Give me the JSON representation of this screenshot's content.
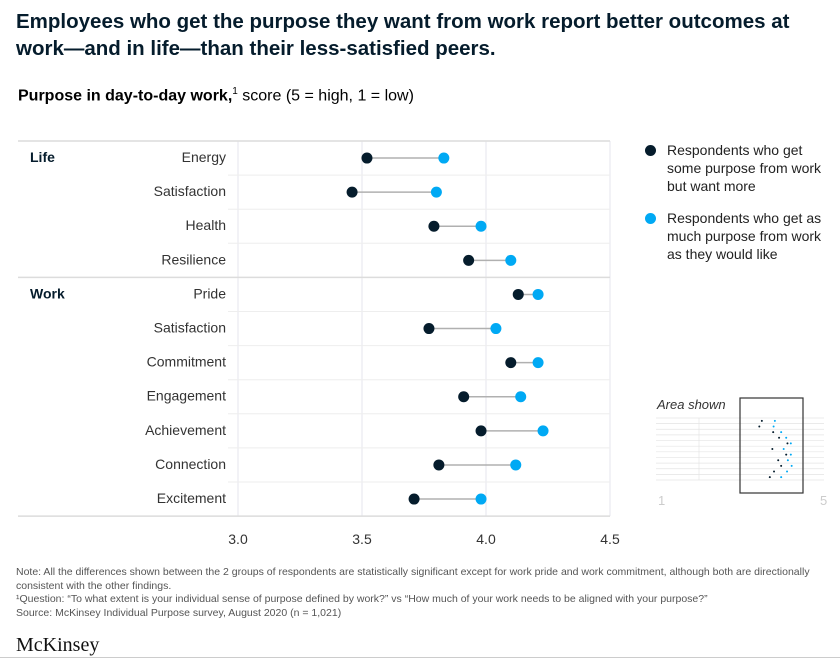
{
  "title": "Employees who get the purpose they want from work report better outcomes at work—and in life—than their less-satisfied peers.",
  "subtitle": {
    "bold": "Purpose in day-to-day work,",
    "sup": "1",
    "rest": " score (5 = high, 1 = low)"
  },
  "colors": {
    "some_purpose": "#051c2c",
    "as_much_purpose": "#00a9f4",
    "connector": "#b0b0b0",
    "grid": "#e6e6ec"
  },
  "chart_data": {
    "type": "dumbbell",
    "xlim": [
      3.0,
      4.5
    ],
    "xticks": [
      "3.0",
      "3.5",
      "4.0",
      "4.5"
    ],
    "xtick_values": [
      3.0,
      3.5,
      4.0,
      4.5
    ],
    "grid": true,
    "legend_placement": "right",
    "groups": [
      {
        "name": "Life",
        "rows": [
          {
            "label": "Energy",
            "some": 3.52,
            "asmuch": 3.83
          },
          {
            "label": "Satisfaction",
            "some": 3.46,
            "asmuch": 3.8
          },
          {
            "label": "Health",
            "some": 3.79,
            "asmuch": 3.98
          },
          {
            "label": "Resilience",
            "some": 3.93,
            "asmuch": 4.1
          }
        ]
      },
      {
        "name": "Work",
        "rows": [
          {
            "label": "Pride",
            "some": 4.13,
            "asmuch": 4.21
          },
          {
            "label": "Satisfaction",
            "some": 3.77,
            "asmuch": 4.04
          },
          {
            "label": "Commitment",
            "some": 4.1,
            "asmuch": 4.21
          },
          {
            "label": "Engagement",
            "some": 3.91,
            "asmuch": 4.14
          },
          {
            "label": "Achievement",
            "some": 3.98,
            "asmuch": 4.23
          },
          {
            "label": "Connection",
            "some": 3.81,
            "asmuch": 4.12
          },
          {
            "label": "Excitement",
            "some": 3.71,
            "asmuch": 3.98
          }
        ]
      }
    ],
    "series": [
      {
        "name": "Respondents who get some purpose from work but want more",
        "key": "some"
      },
      {
        "name": "Respondents who get as much purpose from work as they would like",
        "key": "asmuch"
      }
    ],
    "inset": {
      "label": "Area shown",
      "range_min": "1",
      "range_max": "5"
    }
  },
  "notes": {
    "note": "Note: All the differences shown between the 2 groups of respondents are statistically significant except for work pride and work commitment, although both are directionally consistent with the other findings.",
    "footnote": "¹Question: “To what extent is your individual sense of purpose defined by work?” vs “How much of your work needs to be aligned with your purpose?”",
    "source": "Source: McKinsey Individual Purpose survey, August 2020 (n = 1,021)"
  },
  "logo": "McKinsey"
}
